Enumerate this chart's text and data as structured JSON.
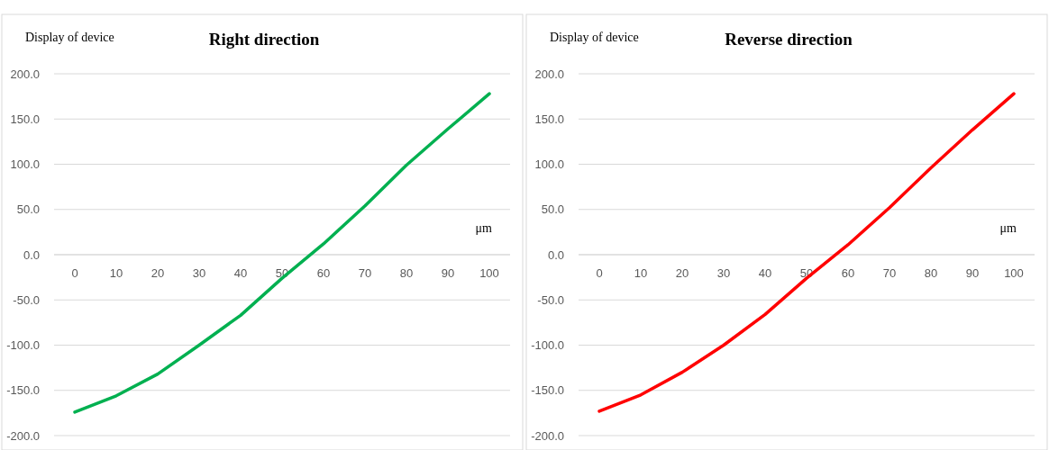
{
  "chart_data": [
    {
      "type": "line",
      "title": "Right direction",
      "ylabel": "Display of device",
      "xlabel": "μm",
      "x": [
        0,
        10,
        20,
        30,
        40,
        50,
        60,
        70,
        80,
        90,
        100
      ],
      "xlim": [
        -5,
        105
      ],
      "xticks": [
        0,
        10,
        20,
        30,
        40,
        50,
        60,
        70,
        80,
        90,
        100
      ],
      "ylim": [
        -200,
        200
      ],
      "yticks": [
        {
          "value": -200,
          "label": "-200.0"
        },
        {
          "value": -150,
          "label": "-150.0"
        },
        {
          "value": -100,
          "label": "-100.0"
        },
        {
          "value": -50,
          "label": "-50.0"
        },
        {
          "value": 0,
          "label": "0.0"
        },
        {
          "value": 50,
          "label": "50.0"
        },
        {
          "value": 100,
          "label": "100.0"
        },
        {
          "value": 150,
          "label": "150.0"
        },
        {
          "value": 200,
          "label": "200.0"
        }
      ],
      "grid": "y",
      "series": [
        {
          "color": "#00b050",
          "values": [
            -174,
            -156,
            -132,
            -100,
            -67,
            -26,
            12,
            54,
            99,
            139,
            178
          ]
        }
      ]
    },
    {
      "type": "line",
      "title": "Reverse direction",
      "ylabel": "Display of device",
      "xlabel": "μm",
      "x": [
        0,
        10,
        20,
        30,
        40,
        50,
        60,
        70,
        80,
        90,
        100
      ],
      "xlim": [
        -5,
        105
      ],
      "xticks": [
        0,
        10,
        20,
        30,
        40,
        50,
        60,
        70,
        80,
        90,
        100
      ],
      "ylim": [
        -200,
        200
      ],
      "yticks": [
        {
          "value": -200,
          "label": "-200.0"
        },
        {
          "value": -150,
          "label": "-150.0"
        },
        {
          "value": -100,
          "label": "-100.0"
        },
        {
          "value": -50,
          "label": "-50.0"
        },
        {
          "value": 0,
          "label": "0.0"
        },
        {
          "value": 50,
          "label": "50.0"
        },
        {
          "value": 100,
          "label": "100.0"
        },
        {
          "value": 150,
          "label": "150.0"
        },
        {
          "value": 200,
          "label": "200.0"
        }
      ],
      "grid": "y",
      "series": [
        {
          "color": "#ff0000",
          "values": [
            -173,
            -155,
            -130,
            -100,
            -66,
            -26,
            11,
            52,
            96,
            138,
            178
          ]
        }
      ]
    }
  ]
}
